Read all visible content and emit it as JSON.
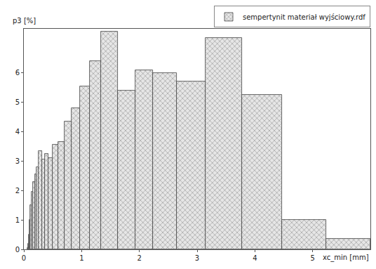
{
  "chart_data": {
    "type": "histogram",
    "xlabel": "xc_min [mm]",
    "ylabel": "p3 [%]",
    "bins": [
      0.06,
      0.07,
      0.08,
      0.1,
      0.115,
      0.135,
      0.16,
      0.19,
      0.22,
      0.26,
      0.31,
      0.36,
      0.42,
      0.5,
      0.59,
      0.7,
      0.82,
      0.97,
      1.14,
      1.34,
      1.63,
      1.93,
      2.24,
      2.65,
      3.14,
      3.78,
      4.47,
      5.24,
      6.0
    ],
    "series": [
      {
        "name": "sempertynit materiał wyjściowy.rdf",
        "color": "#e6e6e6",
        "values": [
          0.05,
          0.2,
          0.5,
          1.0,
          1.5,
          1.95,
          2.3,
          2.55,
          2.8,
          3.35,
          3.05,
          3.25,
          3.1,
          3.55,
          3.65,
          4.35,
          4.8,
          5.55,
          6.4,
          7.4,
          5.4,
          6.1,
          6.0,
          5.7,
          7.2,
          5.25,
          1.0,
          0.35
        ]
      }
    ],
    "xlim": [
      0,
      6.0
    ],
    "ylim": [
      0,
      7.5
    ],
    "xticks": [
      0,
      1,
      2,
      3,
      4,
      5
    ],
    "yticks": [
      0,
      1,
      2,
      3,
      4,
      5,
      6
    ],
    "grid": false,
    "legend": "top right"
  }
}
